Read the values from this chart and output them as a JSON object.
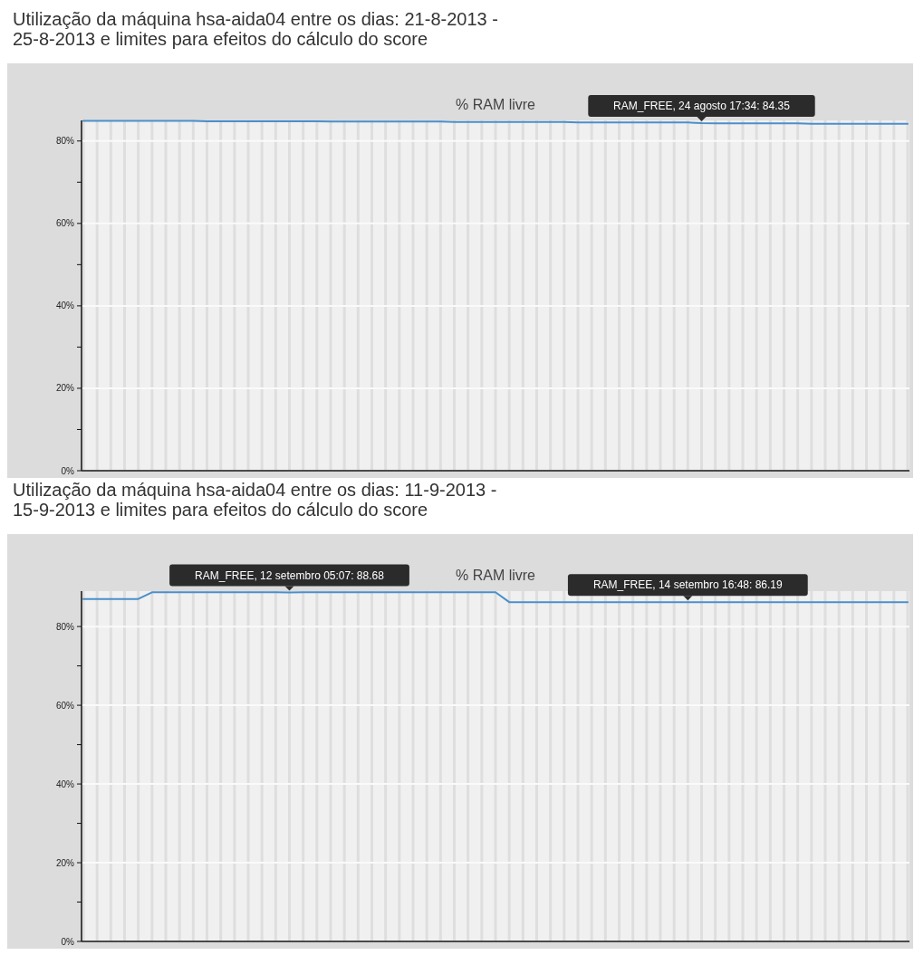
{
  "chart_data": [
    {
      "type": "line",
      "title": "Utilização da máquina hsa-aida04 entre os dias: 21-8-2013 - 25-8-2013 e limites para efeitos do cálculo do score",
      "subtitle": "% RAM livre",
      "categories": [
        null,
        null,
        null,
        null,
        null,
        null,
        null,
        null,
        null,
        null,
        null,
        null,
        null,
        null,
        null,
        null,
        null,
        null,
        null,
        null,
        null,
        null,
        null,
        null,
        null,
        null,
        null,
        null,
        null,
        null,
        null,
        null,
        null,
        null,
        null,
        null,
        null,
        null,
        null,
        null,
        null,
        null,
        null,
        null,
        null,
        null,
        null,
        null,
        null,
        null,
        null,
        null,
        null,
        null,
        null,
        null,
        null,
        null,
        null,
        null,
        null
      ],
      "series": [
        {
          "color": "#4a8fcb",
          "values": [
            84.9,
            84.9,
            84.9,
            84.9,
            84.9,
            84.9,
            84.9,
            84.9,
            84.9,
            84.8,
            84.8,
            84.8,
            84.8,
            84.8,
            84.8,
            84.8,
            84.8,
            84.8,
            84.7,
            84.7,
            84.7,
            84.7,
            84.7,
            84.7,
            84.7,
            84.7,
            84.7,
            84.6,
            84.6,
            84.6,
            84.6,
            84.6,
            84.6,
            84.6,
            84.6,
            84.6,
            84.5,
            84.5,
            84.5,
            84.5,
            84.5,
            84.5,
            84.5,
            84.5,
            84.5,
            84.35,
            84.3,
            84.3,
            84.3,
            84.3,
            84.3,
            84.3,
            84.3,
            84.2,
            84.2,
            84.2,
            84.2,
            84.2,
            84.2,
            84.2,
            84.2
          ]
        }
      ],
      "ylim": [
        0,
        85
      ],
      "yticks": [
        {
          "value": 0,
          "label": "0%"
        },
        {
          "value": 10,
          "label": null
        },
        {
          "value": 20,
          "label": "20%"
        },
        {
          "value": 30,
          "label": null
        },
        {
          "value": 40,
          "label": "40%"
        },
        {
          "value": 50,
          "label": null
        },
        {
          "value": 60,
          "label": "60%"
        },
        {
          "value": 70,
          "label": null
        },
        {
          "value": 80,
          "label": "80%"
        }
      ],
      "grid": true,
      "tick_labels": "y",
      "marker": "none",
      "line_style": "solid",
      "annotations": [
        {
          "text": "RAM_FREE, 24 agosto 17:34: 84.35",
          "y": 84.35
        }
      ]
    },
    {
      "type": "line",
      "title": "Utilização da máquina hsa-aida04 entre os dias: 11-9-2013 - 15-9-2013 e limites para efeitos do cálculo do score",
      "subtitle": "% RAM livre",
      "categories": [
        null,
        null,
        null,
        null,
        null,
        null,
        null,
        null,
        null,
        null,
        null,
        null,
        null,
        null,
        null,
        null,
        null,
        null,
        null,
        null,
        null,
        null,
        null,
        null,
        null,
        null,
        null,
        null,
        null,
        null,
        null,
        null,
        null,
        null,
        null,
        null,
        null,
        null,
        null,
        null,
        null,
        null,
        null,
        null,
        null,
        null,
        null,
        null,
        null,
        null,
        null,
        null,
        null,
        null,
        null,
        null,
        null,
        null,
        null,
        null,
        null
      ],
      "series": [
        {
          "color": "#4a8fcb",
          "values": [
            87.0,
            87.0,
            87.0,
            87.0,
            87.0,
            88.7,
            88.7,
            88.7,
            88.7,
            88.7,
            88.7,
            88.7,
            88.7,
            88.7,
            88.7,
            88.68,
            88.7,
            88.7,
            88.7,
            88.7,
            88.7,
            88.7,
            88.7,
            88.7,
            88.7,
            88.7,
            88.7,
            88.7,
            88.7,
            88.7,
            88.7,
            86.2,
            86.2,
            86.2,
            86.2,
            86.2,
            86.2,
            86.2,
            86.2,
            86.2,
            86.2,
            86.2,
            86.2,
            86.2,
            86.19,
            86.2,
            86.2,
            86.2,
            86.2,
            86.2,
            86.2,
            86.2,
            86.2,
            86.2,
            86.2,
            86.2,
            86.2,
            86.2,
            86.2,
            86.2,
            86.2
          ]
        }
      ],
      "ylim": [
        0,
        89
      ],
      "yticks": [
        {
          "value": 0,
          "label": "0%"
        },
        {
          "value": 10,
          "label": null
        },
        {
          "value": 20,
          "label": "20%"
        },
        {
          "value": 30,
          "label": null
        },
        {
          "value": 40,
          "label": "40%"
        },
        {
          "value": 50,
          "label": null
        },
        {
          "value": 60,
          "label": "60%"
        },
        {
          "value": 70,
          "label": null
        },
        {
          "value": 80,
          "label": "80%"
        }
      ],
      "grid": true,
      "tick_labels": "y",
      "marker": "none",
      "line_style": "solid",
      "annotations": [
        {
          "text": "RAM_FREE, 12 setembro 05:07: 88.68",
          "y": 88.68
        },
        {
          "text": "RAM_FREE, 14 setembro 16:48: 86.19",
          "y": 86.19
        }
      ]
    }
  ]
}
